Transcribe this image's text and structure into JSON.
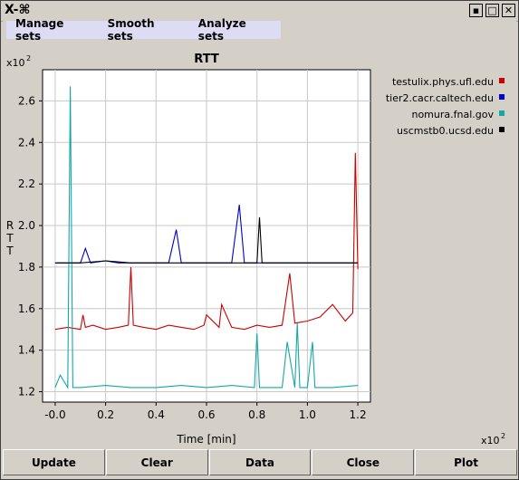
{
  "window": {
    "title_glyph": "X-⌘"
  },
  "menu": [
    "Manage sets",
    "Smooth sets",
    "Analyze sets"
  ],
  "buttons": [
    "Update",
    "Clear",
    "Data",
    "Close",
    "Plot"
  ],
  "colors": {
    "red": "#cc0000",
    "blue": "#0000cc",
    "cyan": "#13a8a8",
    "black": "#000000"
  },
  "chart_data": {
    "type": "line",
    "title": "RTT",
    "xlabel": "Time [min]",
    "ylabel": "RTT",
    "x_multiplier": "x10",
    "y_multiplier": "x10",
    "xlim": [
      -0.05,
      1.25
    ],
    "ylim": [
      1.15,
      2.75
    ],
    "xticks": [
      "-0.0",
      "0.2",
      "0.4",
      "0.6",
      "0.8",
      "1.0",
      "1.2"
    ],
    "yticks": [
      "1.2",
      "1.4",
      "1.6",
      "1.8",
      "2.0",
      "2.2",
      "2.4",
      "2.6"
    ],
    "grid": true,
    "legend_position": "right",
    "series": [
      {
        "name": "testulix.phys.ufl.edu",
        "color": "#cc0000",
        "x": [
          0.0,
          0.05,
          0.1,
          0.11,
          0.12,
          0.15,
          0.2,
          0.25,
          0.29,
          0.3,
          0.31,
          0.35,
          0.4,
          0.45,
          0.5,
          0.55,
          0.59,
          0.6,
          0.65,
          0.66,
          0.7,
          0.75,
          0.8,
          0.85,
          0.9,
          0.93,
          0.95,
          1.0,
          1.05,
          1.1,
          1.15,
          1.18,
          1.19,
          1.2
        ],
        "y": [
          1.5,
          1.51,
          1.5,
          1.57,
          1.51,
          1.52,
          1.5,
          1.51,
          1.52,
          1.8,
          1.52,
          1.51,
          1.5,
          1.52,
          1.51,
          1.5,
          1.52,
          1.57,
          1.51,
          1.62,
          1.51,
          1.5,
          1.52,
          1.51,
          1.52,
          1.77,
          1.53,
          1.54,
          1.56,
          1.62,
          1.54,
          1.58,
          2.35,
          1.79
        ]
      },
      {
        "name": "tier2.cacr.caltech.edu",
        "color": "#0000cc",
        "x": [
          0.0,
          0.05,
          0.1,
          0.12,
          0.14,
          0.2,
          0.25,
          0.3,
          0.35,
          0.4,
          0.45,
          0.48,
          0.5,
          0.55,
          0.6,
          0.65,
          0.7,
          0.73,
          0.75,
          0.8,
          0.85,
          0.9,
          0.95,
          1.0,
          1.05,
          1.1,
          1.15,
          1.2
        ],
        "y": [
          1.82,
          1.82,
          1.82,
          1.89,
          1.82,
          1.83,
          1.82,
          1.82,
          1.82,
          1.82,
          1.82,
          1.98,
          1.82,
          1.82,
          1.82,
          1.82,
          1.82,
          2.1,
          1.82,
          1.82,
          1.82,
          1.82,
          1.82,
          1.82,
          1.82,
          1.82,
          1.82,
          1.82
        ]
      },
      {
        "name": "nomura.fnal.gov",
        "color": "#13a8a8",
        "x": [
          0.0,
          0.02,
          0.05,
          0.06,
          0.07,
          0.1,
          0.2,
          0.3,
          0.4,
          0.5,
          0.6,
          0.7,
          0.79,
          0.8,
          0.81,
          0.9,
          0.92,
          0.95,
          0.96,
          0.97,
          1.0,
          1.02,
          1.03,
          1.1,
          1.2
        ],
        "y": [
          1.22,
          1.28,
          1.22,
          2.67,
          1.22,
          1.22,
          1.23,
          1.22,
          1.22,
          1.23,
          1.22,
          1.23,
          1.22,
          1.48,
          1.22,
          1.22,
          1.44,
          1.22,
          1.53,
          1.22,
          1.22,
          1.44,
          1.22,
          1.22,
          1.23
        ]
      },
      {
        "name": "uscmstb0.ucsd.edu",
        "color": "#000000",
        "x": [
          0.0,
          0.1,
          0.2,
          0.3,
          0.4,
          0.5,
          0.6,
          0.7,
          0.8,
          0.81,
          0.82,
          0.9,
          1.0,
          1.1,
          1.2
        ],
        "y": [
          1.82,
          1.82,
          1.83,
          1.82,
          1.82,
          1.82,
          1.82,
          1.82,
          1.82,
          2.04,
          1.82,
          1.82,
          1.82,
          1.82,
          1.82
        ]
      }
    ]
  }
}
